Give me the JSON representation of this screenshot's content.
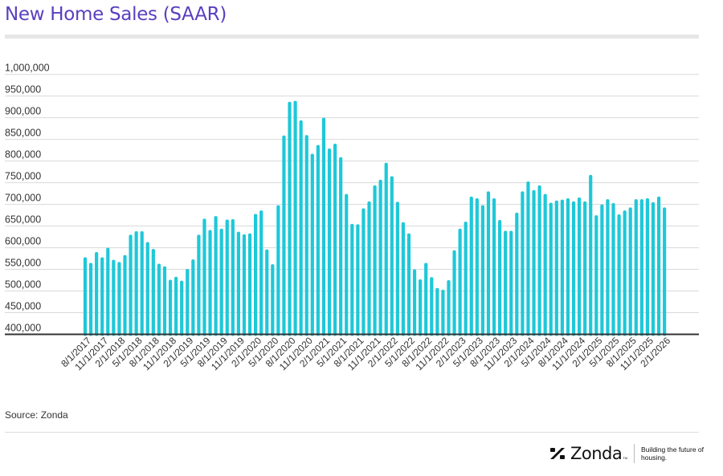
{
  "header": {
    "title": "New Home Sales (SAAR)"
  },
  "footer": {
    "source": "Source: Zonda",
    "logo_text": "Zonda",
    "logo_tm": "TM",
    "tagline": "Building the future of housing."
  },
  "colors": {
    "bar": "#1ec8d8",
    "title": "#5a3fc0",
    "grid": "#d9d9d9",
    "axis": "#333333"
  },
  "chart_data": {
    "type": "bar",
    "title": "New Home Sales (SAAR)",
    "xlabel": "",
    "ylabel": "",
    "frequency": "monthly",
    "first_period": "8/1/2017",
    "last_period": "2/1/2026",
    "ylim": [
      400000,
      1000000
    ],
    "y_ticks": [
      400000,
      450000,
      500000,
      550000,
      600000,
      650000,
      700000,
      750000,
      800000,
      850000,
      900000,
      950000,
      1000000
    ],
    "y_tick_labels": [
      "400,000",
      "450,000",
      "500,000",
      "550,000",
      "600,000",
      "650,000",
      "700,000",
      "750,000",
      "800,000",
      "850,000",
      "900,000",
      "950,000",
      "1,000,000"
    ],
    "tick_every": 3,
    "x_tick_labels": [
      "8/1/2017",
      "11/1/2017",
      "2/1/2018",
      "5/1/2018",
      "8/1/2018",
      "11/1/2018",
      "2/1/2019",
      "5/1/2019",
      "8/1/2019",
      "11/1/2019",
      "2/1/2020",
      "5/1/2020",
      "8/1/2020",
      "11/1/2020",
      "2/1/2021",
      "5/1/2021",
      "8/1/2021",
      "11/1/2021",
      "2/1/2022",
      "5/1/2022",
      "8/1/2022",
      "11/1/2022",
      "2/1/2023",
      "5/1/2023",
      "8/1/2023",
      "11/1/2023",
      "2/1/2024",
      "5/1/2024",
      "8/1/2024",
      "11/1/2024",
      "2/1/2025",
      "5/1/2025",
      "8/1/2025",
      "11/1/2025",
      "2/1/2026"
    ],
    "grid": true,
    "legend": "none",
    "values": [
      578000,
      565000,
      590000,
      578000,
      600000,
      572000,
      567000,
      583000,
      630000,
      638000,
      638000,
      613000,
      597000,
      563000,
      557000,
      526000,
      533000,
      524000,
      551000,
      573000,
      630000,
      667000,
      641000,
      673000,
      644000,
      665000,
      666000,
      637000,
      631000,
      633000,
      678000,
      686000,
      596000,
      562000,
      698000,
      859000,
      937000,
      939000,
      894000,
      860000,
      817000,
      837000,
      900000,
      829000,
      840000,
      809000,
      724000,
      655000,
      654000,
      691000,
      707000,
      744000,
      757000,
      796000,
      765000,
      706000,
      659000,
      633000,
      550000,
      527000,
      565000,
      532000,
      507000,
      503000,
      525000,
      594000,
      644000,
      660000,
      718000,
      714000,
      698000,
      730000,
      714000,
      664000,
      639000,
      639000,
      681000,
      730000,
      753000,
      733000,
      744000,
      724000,
      704000,
      709000,
      711000,
      714000,
      707000,
      716000,
      707000,
      768000,
      675000,
      700000,
      712000,
      703000,
      677000,
      686000,
      693000,
      712000,
      712000,
      714000,
      705000,
      718000,
      693000
    ]
  }
}
